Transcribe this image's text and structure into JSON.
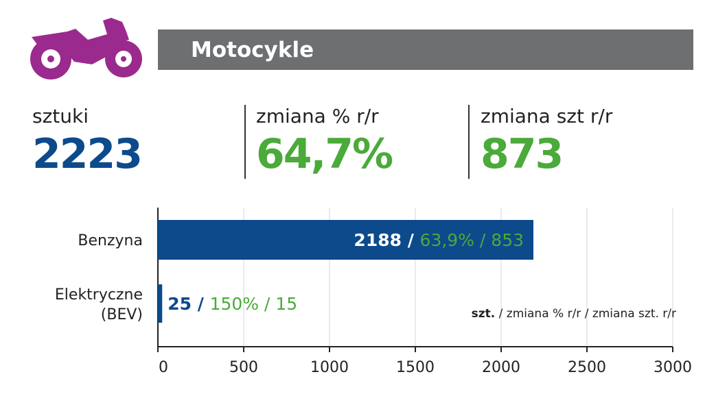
{
  "header": {
    "title": "Motocykle",
    "icon": "motorcycle-icon",
    "icon_color": "#9b2a8e"
  },
  "stats": [
    {
      "label": "sztuki",
      "value": "2223",
      "color": "#0c4a8c"
    },
    {
      "label": "zmiana % r/r",
      "value": "64,7%",
      "color": "#4aaa3a"
    },
    {
      "label": "zmiana szt r/r",
      "value": "873",
      "color": "#4aaa3a"
    }
  ],
  "chart_data": {
    "type": "bar",
    "orientation": "horizontal",
    "categories": [
      "Benzyna",
      "Elektryczne\n(BEV)"
    ],
    "values": [
      2188,
      25
    ],
    "pct_change": [
      "63,9%",
      "150%"
    ],
    "unit_change": [
      "853",
      "15"
    ],
    "bar_color": "#0c4a8c",
    "xlim": [
      0,
      3000
    ],
    "xticks": [
      "0",
      "500",
      "1000",
      "1500",
      "2000",
      "2500",
      "3000"
    ],
    "grid": true,
    "legend_note": {
      "bold": "szt.",
      "rest": " / zmiana % r/r / zmiana szt. r/r"
    }
  }
}
